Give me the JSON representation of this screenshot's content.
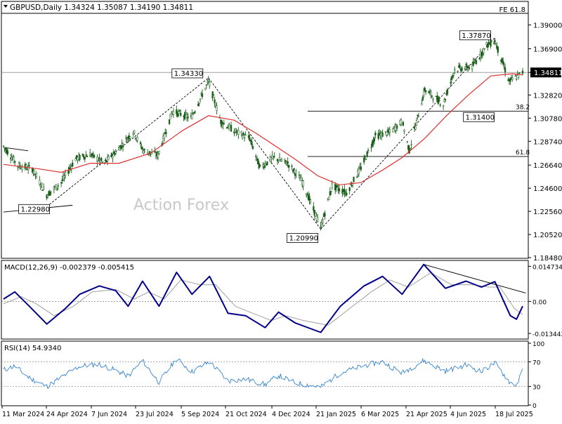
{
  "header": {
    "symbol_line": "GBPUSD,Daily  1.34324 1.35087 1.34190 1.34811",
    "fe_label": "FE 61.8"
  },
  "watermark": "Action Forex",
  "chart_data": [
    {
      "type": "candlestick",
      "panel": "price",
      "symbol": "GBPUSD",
      "timeframe": "Daily",
      "ohlc_last": {
        "open": 1.34324,
        "high": 1.35087,
        "low": 1.3419,
        "close": 1.34811
      },
      "ylim": [
        1.1848,
        1.399
      ],
      "y_ticks": [
        "1.39000",
        "1.36900",
        "1.34811",
        "1.32820",
        "1.30780",
        "1.28740",
        "1.26640",
        "1.24600",
        "1.22560",
        "1.20520",
        "1.18480"
      ],
      "y_tick_values": [
        1.39,
        1.369,
        1.34811,
        1.3282,
        1.3078,
        1.2874,
        1.2664,
        1.246,
        1.2256,
        1.2052,
        1.1848
      ],
      "current_price": 1.34811,
      "x_labels": [
        "11 Mar 2024",
        "24 Apr 2024",
        "7 Jun 2024",
        "23 Jul 2024",
        "5 Sep 2024",
        "21 Oct 2024",
        "4 Dec 2024",
        "21 Jan 2025",
        "6 Mar 2025",
        "21 Apr 2025",
        "4 Jun 2025",
        "18 Jul 2025"
      ],
      "x_start": "2024-03-11",
      "x_end": "2025-07-28",
      "price_path": [
        [
          "2024-03-11",
          1.283
        ],
        [
          "2024-03-25",
          1.266
        ],
        [
          "2024-04-08",
          1.263
        ],
        [
          "2024-04-22",
          1.24
        ],
        [
          "2024-05-06",
          1.251
        ],
        [
          "2024-05-20",
          1.272
        ],
        [
          "2024-06-03",
          1.276
        ],
        [
          "2024-06-17",
          1.268
        ],
        [
          "2024-07-01",
          1.281
        ],
        [
          "2024-07-15",
          1.296
        ],
        [
          "2024-07-25",
          1.279
        ],
        [
          "2024-08-08",
          1.275
        ],
        [
          "2024-08-22",
          1.314
        ],
        [
          "2024-09-09",
          1.308
        ],
        [
          "2024-09-26",
          1.34
        ],
        [
          "2024-10-08",
          1.305
        ],
        [
          "2024-10-22",
          1.296
        ],
        [
          "2024-11-05",
          1.29
        ],
        [
          "2024-11-15",
          1.264
        ],
        [
          "2024-11-28",
          1.273
        ],
        [
          "2024-12-12",
          1.268
        ],
        [
          "2024-12-26",
          1.252
        ],
        [
          "2025-01-13",
          1.211
        ],
        [
          "2025-01-24",
          1.248
        ],
        [
          "2025-02-07",
          1.242
        ],
        [
          "2025-02-21",
          1.264
        ],
        [
          "2025-03-07",
          1.292
        ],
        [
          "2025-03-21",
          1.295
        ],
        [
          "2025-04-02",
          1.305
        ],
        [
          "2025-04-09",
          1.279
        ],
        [
          "2025-04-24",
          1.333
        ],
        [
          "2025-05-12",
          1.32
        ],
        [
          "2025-05-23",
          1.351
        ],
        [
          "2025-06-09",
          1.353
        ],
        [
          "2025-06-23",
          1.372
        ],
        [
          "2025-07-01",
          1.376
        ],
        [
          "2025-07-15",
          1.34
        ],
        [
          "2025-07-28",
          1.348
        ]
      ],
      "ma_path": [
        [
          "2024-03-11",
          1.267
        ],
        [
          "2024-04-15",
          1.263
        ],
        [
          "2024-05-06",
          1.26
        ],
        [
          "2024-06-03",
          1.268
        ],
        [
          "2024-07-01",
          1.268
        ],
        [
          "2024-08-01",
          1.277
        ],
        [
          "2024-09-01",
          1.297
        ],
        [
          "2024-09-26",
          1.31
        ],
        [
          "2024-10-21",
          1.306
        ],
        [
          "2024-11-12",
          1.294
        ],
        [
          "2024-12-02",
          1.282
        ],
        [
          "2024-12-20",
          1.271
        ],
        [
          "2025-01-10",
          1.257
        ],
        [
          "2025-01-31",
          1.249
        ],
        [
          "2025-02-21",
          1.251
        ],
        [
          "2025-03-14",
          1.262
        ],
        [
          "2025-04-02",
          1.273
        ],
        [
          "2025-04-24",
          1.29
        ],
        [
          "2025-05-15",
          1.31
        ],
        [
          "2025-06-05",
          1.328
        ],
        [
          "2025-06-27",
          1.345
        ],
        [
          "2025-07-18",
          1.347
        ],
        [
          "2025-07-28",
          1.346
        ]
      ],
      "annotations": [
        {
          "label": "1.34330",
          "date": "2024-09-26",
          "value": 1.3433
        },
        {
          "label": "1.22980",
          "date": "2024-04-22",
          "value": 1.2298
        },
        {
          "label": "1.20990",
          "date": "2025-01-13",
          "value": 1.2099
        },
        {
          "label": "1.37870",
          "date": "2025-07-01",
          "value": 1.3787
        },
        {
          "label": "1.31400",
          "date": "2025-06-10",
          "value": 1.314
        }
      ],
      "fib_levels": [
        {
          "label": "38.2",
          "value": 1.314
        },
        {
          "label": "61.8",
          "value": 1.274
        }
      ],
      "trendlines": [
        {
          "style": "solid",
          "points": [
            [
              "2024-03-11",
              1.282
            ],
            [
              "2024-04-04",
              1.279
            ]
          ]
        },
        {
          "style": "solid",
          "points": [
            [
              "2024-03-11",
              1.225
            ],
            [
              "2024-05-17",
              1.231
            ]
          ]
        },
        {
          "style": "dashed",
          "points": [
            [
              "2024-04-22",
              1.2298
            ],
            [
              "2024-09-26",
              1.3433
            ]
          ]
        },
        {
          "style": "dashed",
          "points": [
            [
              "2024-09-26",
              1.3433
            ],
            [
              "2025-01-13",
              1.2099
            ]
          ]
        },
        {
          "style": "dashed",
          "points": [
            [
              "2025-01-13",
              1.2099
            ],
            [
              "2025-07-01",
              1.3787
            ]
          ]
        }
      ],
      "colors": {
        "candle": "#1a5e1a",
        "ma": "#e03030",
        "line": "#000000"
      }
    },
    {
      "type": "line",
      "panel": "macd",
      "title": "MACD(12,26,9) -0.002379 -0.005415",
      "ylim": [
        -0.0155,
        0.0163
      ],
      "y_ticks": [
        "0.014734",
        "0.00",
        "-0.013442"
      ],
      "y_tick_values": [
        0.014734,
        0.0,
        -0.013442
      ],
      "series": [
        {
          "name": "MACD",
          "color": "#00008b",
          "points": [
            [
              "2024-03-11",
              0.001
            ],
            [
              "2024-03-22",
              0.004
            ],
            [
              "2024-04-05",
              -0.002
            ],
            [
              "2024-04-22",
              -0.0095
            ],
            [
              "2024-05-10",
              -0.003
            ],
            [
              "2024-05-24",
              0.003
            ],
            [
              "2024-06-12",
              0.0065
            ],
            [
              "2024-06-28",
              0.0045
            ],
            [
              "2024-07-10",
              -0.002
            ],
            [
              "2024-07-24",
              0.0085
            ],
            [
              "2024-08-09",
              -0.002
            ],
            [
              "2024-08-26",
              0.0122
            ],
            [
              "2024-09-10",
              0.003
            ],
            [
              "2024-09-27",
              0.0105
            ],
            [
              "2024-10-15",
              -0.005
            ],
            [
              "2024-11-01",
              -0.006
            ],
            [
              "2024-11-20",
              -0.011
            ],
            [
              "2024-12-03",
              -0.0045
            ],
            [
              "2024-12-19",
              -0.009
            ],
            [
              "2025-01-13",
              -0.013
            ],
            [
              "2025-02-01",
              -0.002
            ],
            [
              "2025-02-24",
              0.0065
            ],
            [
              "2025-03-14",
              0.0105
            ],
            [
              "2025-04-02",
              0.003
            ],
            [
              "2025-04-23",
              0.0155
            ],
            [
              "2025-05-14",
              0.0055
            ],
            [
              "2025-06-03",
              0.0085
            ],
            [
              "2025-06-18",
              0.006
            ],
            [
              "2025-07-01",
              0.0083
            ],
            [
              "2025-07-16",
              -0.006
            ],
            [
              "2025-07-22",
              -0.0075
            ],
            [
              "2025-07-28",
              -0.002
            ]
          ]
        },
        {
          "name": "Signal",
          "color": "#a0a0a0",
          "points": [
            [
              "2024-03-11",
              -0.001
            ],
            [
              "2024-03-28",
              0.002
            ],
            [
              "2024-04-12",
              -0.001
            ],
            [
              "2024-04-29",
              -0.006
            ],
            [
              "2024-05-18",
              -0.002
            ],
            [
              "2024-06-05",
              0.004
            ],
            [
              "2024-06-28",
              0.005
            ],
            [
              "2024-07-16",
              0.001
            ],
            [
              "2024-07-30",
              0.004
            ],
            [
              "2024-08-14",
              0.001
            ],
            [
              "2024-08-30",
              0.009
            ],
            [
              "2024-09-18",
              0.007
            ],
            [
              "2024-10-03",
              0.007
            ],
            [
              "2024-10-22",
              -0.002
            ],
            [
              "2024-11-08",
              -0.005
            ],
            [
              "2024-11-26",
              -0.008
            ],
            [
              "2024-12-10",
              -0.006
            ],
            [
              "2024-12-27",
              -0.008
            ],
            [
              "2025-01-20",
              -0.01
            ],
            [
              "2025-02-10",
              -0.003
            ],
            [
              "2025-03-03",
              0.004
            ],
            [
              "2025-03-21",
              0.009
            ],
            [
              "2025-04-08",
              0.006
            ],
            [
              "2025-04-30",
              0.012
            ],
            [
              "2025-05-20",
              0.007
            ],
            [
              "2025-06-10",
              0.007
            ],
            [
              "2025-06-25",
              0.006
            ],
            [
              "2025-07-06",
              0.006
            ],
            [
              "2025-07-20",
              -0.003
            ],
            [
              "2025-07-28",
              -0.0055
            ]
          ]
        }
      ],
      "trendlines": [
        {
          "style": "solid",
          "points": [
            [
              "2025-04-23",
              0.0155
            ],
            [
              "2025-07-31",
              0.0035
            ]
          ]
        }
      ]
    },
    {
      "type": "line",
      "panel": "rsi",
      "title": "RSI(14) 54.9340",
      "ylim": [
        0,
        100
      ],
      "y_ticks": [
        "100",
        "70",
        "30",
        "0"
      ],
      "y_tick_values": [
        100,
        70,
        30,
        0
      ],
      "current": 54.934,
      "series": [
        {
          "name": "RSI",
          "color": "#1e78d0",
          "points": [
            [
              "2024-03-11",
              57
            ],
            [
              "2024-03-22",
              63
            ],
            [
              "2024-04-05",
              44
            ],
            [
              "2024-04-22",
              30
            ],
            [
              "2024-05-10",
              49
            ],
            [
              "2024-05-24",
              63
            ],
            [
              "2024-06-12",
              66
            ],
            [
              "2024-06-28",
              56
            ],
            [
              "2024-07-10",
              47
            ],
            [
              "2024-07-24",
              72
            ],
            [
              "2024-08-09",
              37
            ],
            [
              "2024-08-26",
              75
            ],
            [
              "2024-09-10",
              54
            ],
            [
              "2024-09-27",
              70
            ],
            [
              "2024-10-15",
              39
            ],
            [
              "2024-11-01",
              42
            ],
            [
              "2024-11-20",
              33
            ],
            [
              "2024-12-03",
              48
            ],
            [
              "2024-12-19",
              36
            ],
            [
              "2025-01-13",
              29
            ],
            [
              "2025-02-01",
              52
            ],
            [
              "2025-02-24",
              64
            ],
            [
              "2025-03-14",
              70
            ],
            [
              "2025-04-02",
              52
            ],
            [
              "2025-04-23",
              72
            ],
            [
              "2025-05-14",
              55
            ],
            [
              "2025-06-03",
              65
            ],
            [
              "2025-06-18",
              54
            ],
            [
              "2025-07-01",
              68
            ],
            [
              "2025-07-16",
              36
            ],
            [
              "2025-07-22",
              33
            ],
            [
              "2025-07-28",
              55
            ]
          ]
        }
      ]
    }
  ]
}
